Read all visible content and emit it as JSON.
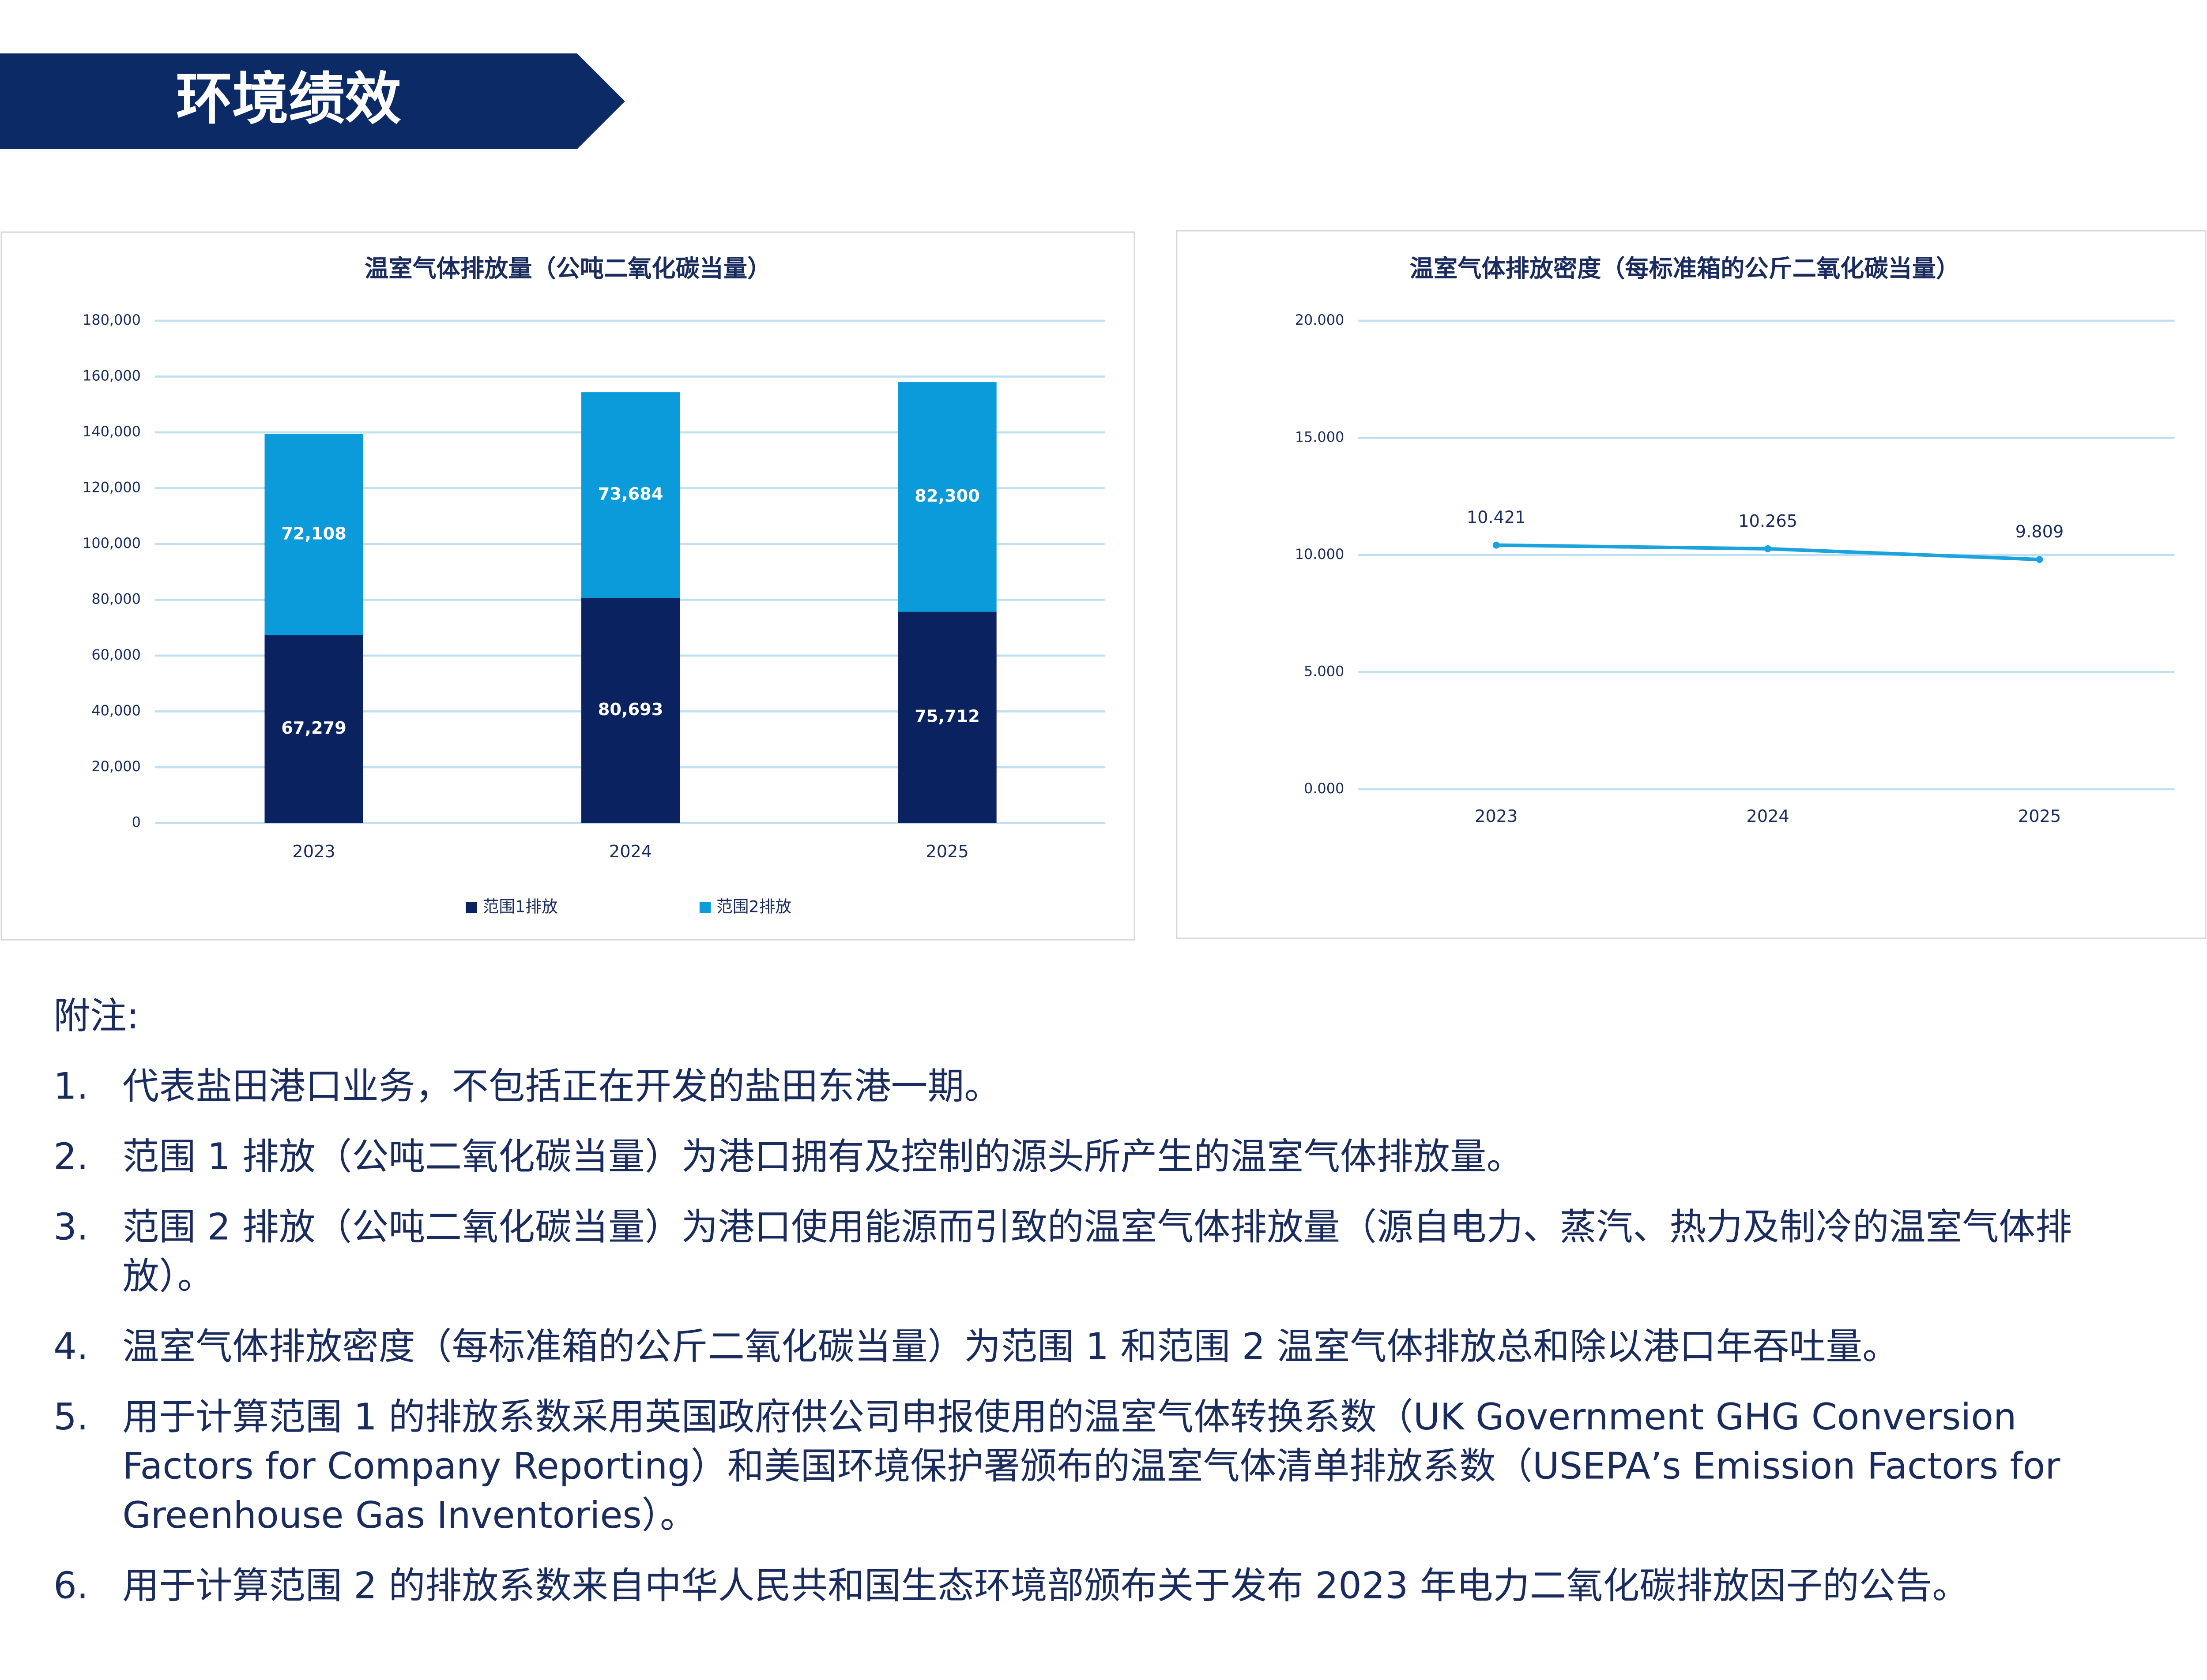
{
  "header": {
    "title": "环境绩效"
  },
  "chart_data": [
    {
      "type": "bar",
      "stacked": true,
      "title": "温室气体排放量（公吨二氧化碳当量）",
      "categories": [
        "2023",
        "2024",
        "2025"
      ],
      "series": [
        {
          "name": "范围1排放",
          "color": "#0b2260",
          "values": [
            67279,
            80693,
            75712
          ],
          "value_labels": [
            "67,279",
            "80,693",
            "75,712"
          ]
        },
        {
          "name": "范围2排放",
          "color": "#0b9bdb",
          "values": [
            72108,
            73684,
            82300
          ],
          "value_labels": [
            "72,108",
            "73,684",
            "82,300"
          ]
        }
      ],
      "ylim": [
        0,
        180000
      ],
      "yticks": [
        0,
        {
          "value": 20000,
          "label": "20,000"
        },
        {
          "value": 40000,
          "label": "40,000"
        },
        {
          "value": 60000,
          "label": "60,000"
        },
        {
          "value": 80000,
          "label": "80,000"
        },
        {
          "value": 100000,
          "label": "100,000"
        },
        {
          "value": 120000,
          "label": "120,000"
        },
        {
          "value": 140000,
          "label": "140,000"
        },
        {
          "value": 160000,
          "label": "160,000"
        },
        {
          "value": 180000,
          "label": "180,000"
        }
      ],
      "grid": true,
      "legend": "bottom"
    },
    {
      "type": "line",
      "title": "温室气体排放密度（每标准箱的公斤二氧化碳当量）",
      "categories": [
        "2023",
        "2024",
        "2025"
      ],
      "values": [
        10.421,
        10.265,
        9.809
      ],
      "color": "#1aa3dc",
      "ylim": [
        0,
        20
      ],
      "yticks": [
        {
          "value": 0,
          "label": "0.000"
        },
        {
          "value": 5,
          "label": "5.000"
        },
        {
          "value": 10,
          "label": "10.000"
        },
        {
          "value": 15,
          "label": "15.000"
        },
        {
          "value": 20,
          "label": "20.000"
        }
      ],
      "grid": true
    }
  ],
  "notes": {
    "heading": "附注:",
    "items": [
      {
        "number": "1.",
        "text": "代表盐田港口业务，不包括正在开发的盐田东港一期。"
      },
      {
        "number": "2.",
        "text": "范围 1 排放（公吨二氧化碳当量）为港口拥有及控制的源头所产生的温室气体排放量。"
      },
      {
        "number": "3.",
        "text": "范围 2 排放（公吨二氧化碳当量）为港口使用能源而引致的温室气体排放量（源自电力、蒸汽、热力及制冷的温室气体排放）。"
      },
      {
        "number": "4.",
        "text": "温室气体排放密度（每标准箱的公斤二氧化碳当量）为范围 1 和范围 2 温室气体排放总和除以港口年吞吐量。"
      },
      {
        "number": "5.",
        "text": "用于计算范围 1 的排放系数采用英国政府供公司申报使用的温室气体转换系数（UK Government GHG Conversion Factors for Company Reporting）和美国环境保护署颁布的温室气体清单排放系数（USEPA’s Emission Factors for Greenhouse Gas Inventories）。"
      },
      {
        "number": "6.",
        "text": "用于计算范围 2 的排放系数来自中华人民共和国生态环境部颁布关于发布 2023 年电力二氧化碳排放因子的公告。"
      }
    ]
  }
}
